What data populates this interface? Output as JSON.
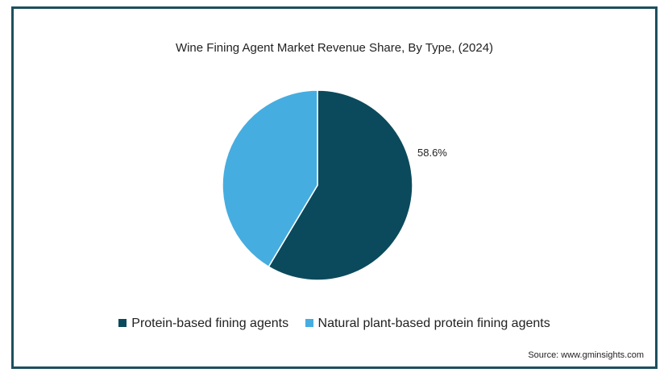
{
  "chart_data": {
    "type": "pie",
    "title": "Wine Fining Agent Market Revenue Share, By Type, (2024)",
    "slices": [
      {
        "label": "Protein-based fining agents",
        "value": 58.6,
        "color": "#0b4a5c",
        "data_label": "58.6%"
      },
      {
        "label": "Natural plant-based protein fining agents",
        "value": 41.4,
        "color": "#46ade0",
        "data_label": ""
      }
    ],
    "legend_position": "bottom",
    "source": "Source: www.gminsights.com"
  }
}
